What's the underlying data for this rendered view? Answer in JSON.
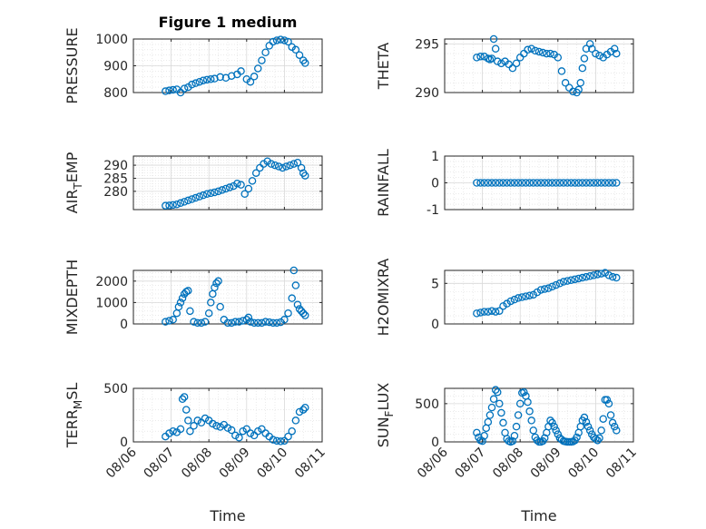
{
  "figure": {
    "title": "Figure 1 medium",
    "xlabel": "Time"
  },
  "colors": {
    "marker": "#0072BD",
    "axes": "#262626",
    "grid": "#d9d9d9"
  },
  "chart_data": [
    {
      "id": "pressure",
      "type": "scatter",
      "title": "Figure 1 medium",
      "ylabel": "PRESSURE",
      "ylim": [
        800,
        1000
      ],
      "yticks": [
        800,
        900,
        1000
      ],
      "xlim": [
        0,
        5
      ],
      "xticks": [
        "08/06",
        "08/07",
        "08/08",
        "08/09",
        "08/10",
        "08/11"
      ],
      "show_xticklabels": false,
      "x": [
        0.85,
        0.95,
        1.05,
        1.15,
        1.25,
        1.35,
        1.45,
        1.55,
        1.65,
        1.75,
        1.85,
        1.95,
        2.05,
        2.15,
        2.3,
        2.45,
        2.6,
        2.75,
        2.85,
        3.0,
        3.1,
        3.2,
        3.3,
        3.4,
        3.5,
        3.6,
        3.7,
        3.8,
        3.9,
        4.0,
        4.1,
        4.2,
        4.3,
        4.4,
        4.5,
        4.55
      ],
      "y": [
        805,
        808,
        810,
        812,
        800,
        815,
        820,
        830,
        835,
        840,
        845,
        848,
        850,
        852,
        858,
        855,
        862,
        868,
        880,
        850,
        840,
        860,
        890,
        920,
        950,
        975,
        990,
        995,
        998,
        995,
        990,
        970,
        960,
        940,
        920,
        910
      ]
    },
    {
      "id": "theta",
      "type": "scatter",
      "ylabel": "THETA",
      "ylim": [
        290,
        295.5
      ],
      "yticks": [
        290,
        295
      ],
      "xlim": [
        0,
        5
      ],
      "xticks": [
        "08/06",
        "08/07",
        "08/08",
        "08/09",
        "08/10",
        "08/11"
      ],
      "show_xticklabels": false,
      "x": [
        0.85,
        0.95,
        1.05,
        1.15,
        1.2,
        1.25,
        1.3,
        1.35,
        1.4,
        1.5,
        1.6,
        1.7,
        1.8,
        1.9,
        2.0,
        2.1,
        2.2,
        2.3,
        2.4,
        2.5,
        2.6,
        2.7,
        2.8,
        2.9,
        3.0,
        3.1,
        3.2,
        3.3,
        3.4,
        3.5,
        3.55,
        3.6,
        3.65,
        3.7,
        3.75,
        3.85,
        3.9,
        4.0,
        4.1,
        4.2,
        4.3,
        4.4,
        4.5,
        4.55
      ],
      "y": [
        293.6,
        293.7,
        293.7,
        293.5,
        293.4,
        293.5,
        295.5,
        294.5,
        293.2,
        293.0,
        293.2,
        292.9,
        292.5,
        293.0,
        293.6,
        294.0,
        294.4,
        294.5,
        294.3,
        294.2,
        294.1,
        294.0,
        294.0,
        293.9,
        293.6,
        292.2,
        291.0,
        290.5,
        290.1,
        290.0,
        290.3,
        291.0,
        292.5,
        293.5,
        294.5,
        295.0,
        294.5,
        294.0,
        293.8,
        293.6,
        293.9,
        294.2,
        294.5,
        294.0
      ]
    },
    {
      "id": "air_temp",
      "type": "scatter",
      "ylabel": "AIR_TEMP",
      "ylabel_parts": [
        "AIR",
        "T",
        "EMP"
      ],
      "ylim": [
        273,
        293.5
      ],
      "yticks": [
        280,
        285,
        290
      ],
      "xlim": [
        0,
        5
      ],
      "xticks": [
        "08/06",
        "08/07",
        "08/08",
        "08/09",
        "08/10",
        "08/11"
      ],
      "show_xticklabels": false,
      "x": [
        0.85,
        0.95,
        1.05,
        1.15,
        1.25,
        1.35,
        1.45,
        1.55,
        1.65,
        1.75,
        1.85,
        1.95,
        2.05,
        2.15,
        2.25,
        2.35,
        2.45,
        2.55,
        2.65,
        2.75,
        2.85,
        2.95,
        3.05,
        3.15,
        3.25,
        3.35,
        3.45,
        3.55,
        3.65,
        3.75,
        3.85,
        3.95,
        4.05,
        4.15,
        4.25,
        4.35,
        4.45,
        4.5,
        4.55
      ],
      "y": [
        274.5,
        274.6,
        274.8,
        275.0,
        275.5,
        276.0,
        276.5,
        277.0,
        277.5,
        278.0,
        278.5,
        279.0,
        279.3,
        279.6,
        280.0,
        280.5,
        281.0,
        281.5,
        282.0,
        283.0,
        282.5,
        279.0,
        281.0,
        284.0,
        287.0,
        289.0,
        290.5,
        291.5,
        290.5,
        290.0,
        289.5,
        289.0,
        289.5,
        290.0,
        290.5,
        291.0,
        289.0,
        287.0,
        286.0
      ]
    },
    {
      "id": "rainfall",
      "type": "scatter",
      "ylabel": "RAINFALL",
      "ylim": [
        -1,
        1
      ],
      "yticks": [
        -1,
        0,
        1
      ],
      "xlim": [
        0,
        5
      ],
      "xticks": [
        "08/06",
        "08/07",
        "08/08",
        "08/09",
        "08/10",
        "08/11"
      ],
      "show_xticklabels": false,
      "x": [
        0.85,
        0.95,
        1.05,
        1.15,
        1.25,
        1.35,
        1.45,
        1.55,
        1.65,
        1.75,
        1.85,
        1.95,
        2.05,
        2.15,
        2.25,
        2.35,
        2.45,
        2.55,
        2.65,
        2.75,
        2.85,
        2.95,
        3.05,
        3.15,
        3.25,
        3.35,
        3.45,
        3.55,
        3.65,
        3.75,
        3.85,
        3.95,
        4.05,
        4.15,
        4.25,
        4.35,
        4.45,
        4.55
      ],
      "y": [
        0,
        0,
        0,
        0,
        0,
        0,
        0,
        0,
        0,
        0,
        0,
        0,
        0,
        0,
        0,
        0,
        0,
        0,
        0,
        0,
        0,
        0,
        0,
        0,
        0,
        0,
        0,
        0,
        0,
        0,
        0,
        0,
        0,
        0,
        0,
        0,
        0,
        0
      ]
    },
    {
      "id": "mixdepth",
      "type": "scatter",
      "ylabel": "MIXDEPTH",
      "ylim": [
        0,
        2500
      ],
      "yticks": [
        0,
        1000,
        2000
      ],
      "xlim": [
        0,
        5
      ],
      "xticks": [
        "08/06",
        "08/07",
        "08/08",
        "08/09",
        "08/10",
        "08/11"
      ],
      "show_xticklabels": false,
      "x": [
        0.85,
        0.95,
        1.05,
        1.15,
        1.2,
        1.25,
        1.3,
        1.35,
        1.4,
        1.45,
        1.5,
        1.6,
        1.7,
        1.8,
        1.9,
        2.0,
        2.05,
        2.1,
        2.15,
        2.2,
        2.25,
        2.3,
        2.4,
        2.5,
        2.6,
        2.7,
        2.8,
        2.9,
        3.0,
        3.05,
        3.1,
        3.2,
        3.3,
        3.4,
        3.5,
        3.6,
        3.7,
        3.8,
        3.9,
        4.0,
        4.1,
        4.2,
        4.25,
        4.3,
        4.35,
        4.4,
        4.45,
        4.5,
        4.55
      ],
      "y": [
        100,
        150,
        200,
        500,
        800,
        1000,
        1200,
        1400,
        1500,
        1550,
        600,
        100,
        50,
        50,
        100,
        500,
        1000,
        1400,
        1700,
        1900,
        2000,
        800,
        200,
        50,
        50,
        100,
        100,
        150,
        200,
        300,
        100,
        50,
        50,
        50,
        100,
        80,
        50,
        50,
        80,
        200,
        500,
        1200,
        2500,
        1800,
        900,
        700,
        600,
        500,
        400
      ]
    },
    {
      "id": "h2omixra",
      "type": "scatter",
      "ylabel": "H2OMIXRA",
      "ylim": [
        0,
        6.6
      ],
      "yticks": [
        0,
        5
      ],
      "xlim": [
        0,
        5
      ],
      "xticks": [
        "08/06",
        "08/07",
        "08/08",
        "08/09",
        "08/10",
        "08/11"
      ],
      "show_xticklabels": false,
      "x": [
        0.85,
        0.95,
        1.05,
        1.15,
        1.25,
        1.35,
        1.45,
        1.55,
        1.65,
        1.75,
        1.85,
        1.95,
        2.05,
        2.15,
        2.25,
        2.35,
        2.45,
        2.55,
        2.65,
        2.75,
        2.85,
        2.95,
        3.05,
        3.15,
        3.25,
        3.35,
        3.45,
        3.55,
        3.65,
        3.75,
        3.85,
        3.95,
        4.05,
        4.15,
        4.25,
        4.35,
        4.45,
        4.55
      ],
      "y": [
        1.3,
        1.4,
        1.5,
        1.5,
        1.6,
        1.5,
        1.6,
        2.2,
        2.5,
        2.8,
        3.0,
        3.2,
        3.3,
        3.4,
        3.5,
        3.6,
        3.9,
        4.2,
        4.3,
        4.4,
        4.6,
        4.8,
        5.0,
        5.2,
        5.3,
        5.4,
        5.5,
        5.6,
        5.7,
        5.8,
        5.9,
        6.0,
        6.1,
        6.2,
        6.3,
        6.0,
        5.8,
        5.7
      ]
    },
    {
      "id": "terr_msl",
      "type": "scatter",
      "ylabel": "TERR_MSL",
      "ylabel_parts": [
        "TERR",
        "M",
        "SL"
      ],
      "ylim": [
        0,
        500
      ],
      "yticks": [
        0,
        500
      ],
      "xlim": [
        0,
        5
      ],
      "xticks": [
        "08/06",
        "08/07",
        "08/08",
        "08/09",
        "08/10",
        "08/11"
      ],
      "show_xticklabels": true,
      "x": [
        0.85,
        0.95,
        1.05,
        1.15,
        1.25,
        1.3,
        1.35,
        1.4,
        1.45,
        1.5,
        1.6,
        1.7,
        1.8,
        1.9,
        2.0,
        2.1,
        2.2,
        2.3,
        2.4,
        2.5,
        2.6,
        2.7,
        2.8,
        2.9,
        3.0,
        3.1,
        3.2,
        3.3,
        3.4,
        3.5,
        3.6,
        3.7,
        3.8,
        3.9,
        4.0,
        4.1,
        4.2,
        4.3,
        4.4,
        4.5,
        4.55
      ],
      "y": [
        50,
        80,
        100,
        90,
        120,
        400,
        420,
        300,
        200,
        100,
        150,
        200,
        180,
        220,
        200,
        170,
        150,
        140,
        160,
        130,
        110,
        60,
        40,
        100,
        120,
        80,
        60,
        100,
        120,
        80,
        50,
        20,
        10,
        5,
        10,
        50,
        100,
        200,
        280,
        300,
        320
      ]
    },
    {
      "id": "sun_flux",
      "type": "scatter",
      "ylabel": "SUN_FLUX",
      "ylabel_parts": [
        "SUN",
        "F",
        "LUX"
      ],
      "ylim": [
        0,
        700
      ],
      "yticks": [
        0,
        500
      ],
      "xlim": [
        0,
        5
      ],
      "xticks": [
        "08/06",
        "08/07",
        "08/08",
        "08/09",
        "08/10",
        "08/11"
      ],
      "show_xticklabels": true,
      "x": [
        0.85,
        0.9,
        0.95,
        1.0,
        1.05,
        1.1,
        1.15,
        1.2,
        1.25,
        1.3,
        1.35,
        1.4,
        1.45,
        1.5,
        1.55,
        1.6,
        1.65,
        1.7,
        1.75,
        1.8,
        1.85,
        1.9,
        1.95,
        2.0,
        2.05,
        2.1,
        2.15,
        2.2,
        2.25,
        2.3,
        2.35,
        2.4,
        2.45,
        2.5,
        2.55,
        2.6,
        2.65,
        2.7,
        2.75,
        2.8,
        2.85,
        2.9,
        2.95,
        3.0,
        3.05,
        3.1,
        3.15,
        3.2,
        3.25,
        3.3,
        3.35,
        3.4,
        3.45,
        3.5,
        3.55,
        3.6,
        3.65,
        3.7,
        3.75,
        3.8,
        3.85,
        3.9,
        3.95,
        4.0,
        4.05,
        4.1,
        4.15,
        4.2,
        4.25,
        4.3,
        4.35,
        4.4,
        4.45,
        4.5,
        4.55
      ],
      "y": [
        120,
        60,
        20,
        10,
        80,
        180,
        260,
        350,
        450,
        560,
        680,
        650,
        500,
        380,
        250,
        120,
        40,
        10,
        0,
        10,
        80,
        200,
        350,
        500,
        640,
        650,
        600,
        520,
        400,
        280,
        150,
        60,
        20,
        0,
        0,
        10,
        50,
        120,
        200,
        280,
        250,
        200,
        150,
        100,
        50,
        30,
        10,
        5,
        0,
        0,
        0,
        5,
        20,
        60,
        120,
        200,
        280,
        320,
        260,
        200,
        150,
        100,
        60,
        40,
        20,
        50,
        150,
        300,
        550,
        550,
        500,
        350,
        250,
        200,
        150
      ]
    }
  ]
}
